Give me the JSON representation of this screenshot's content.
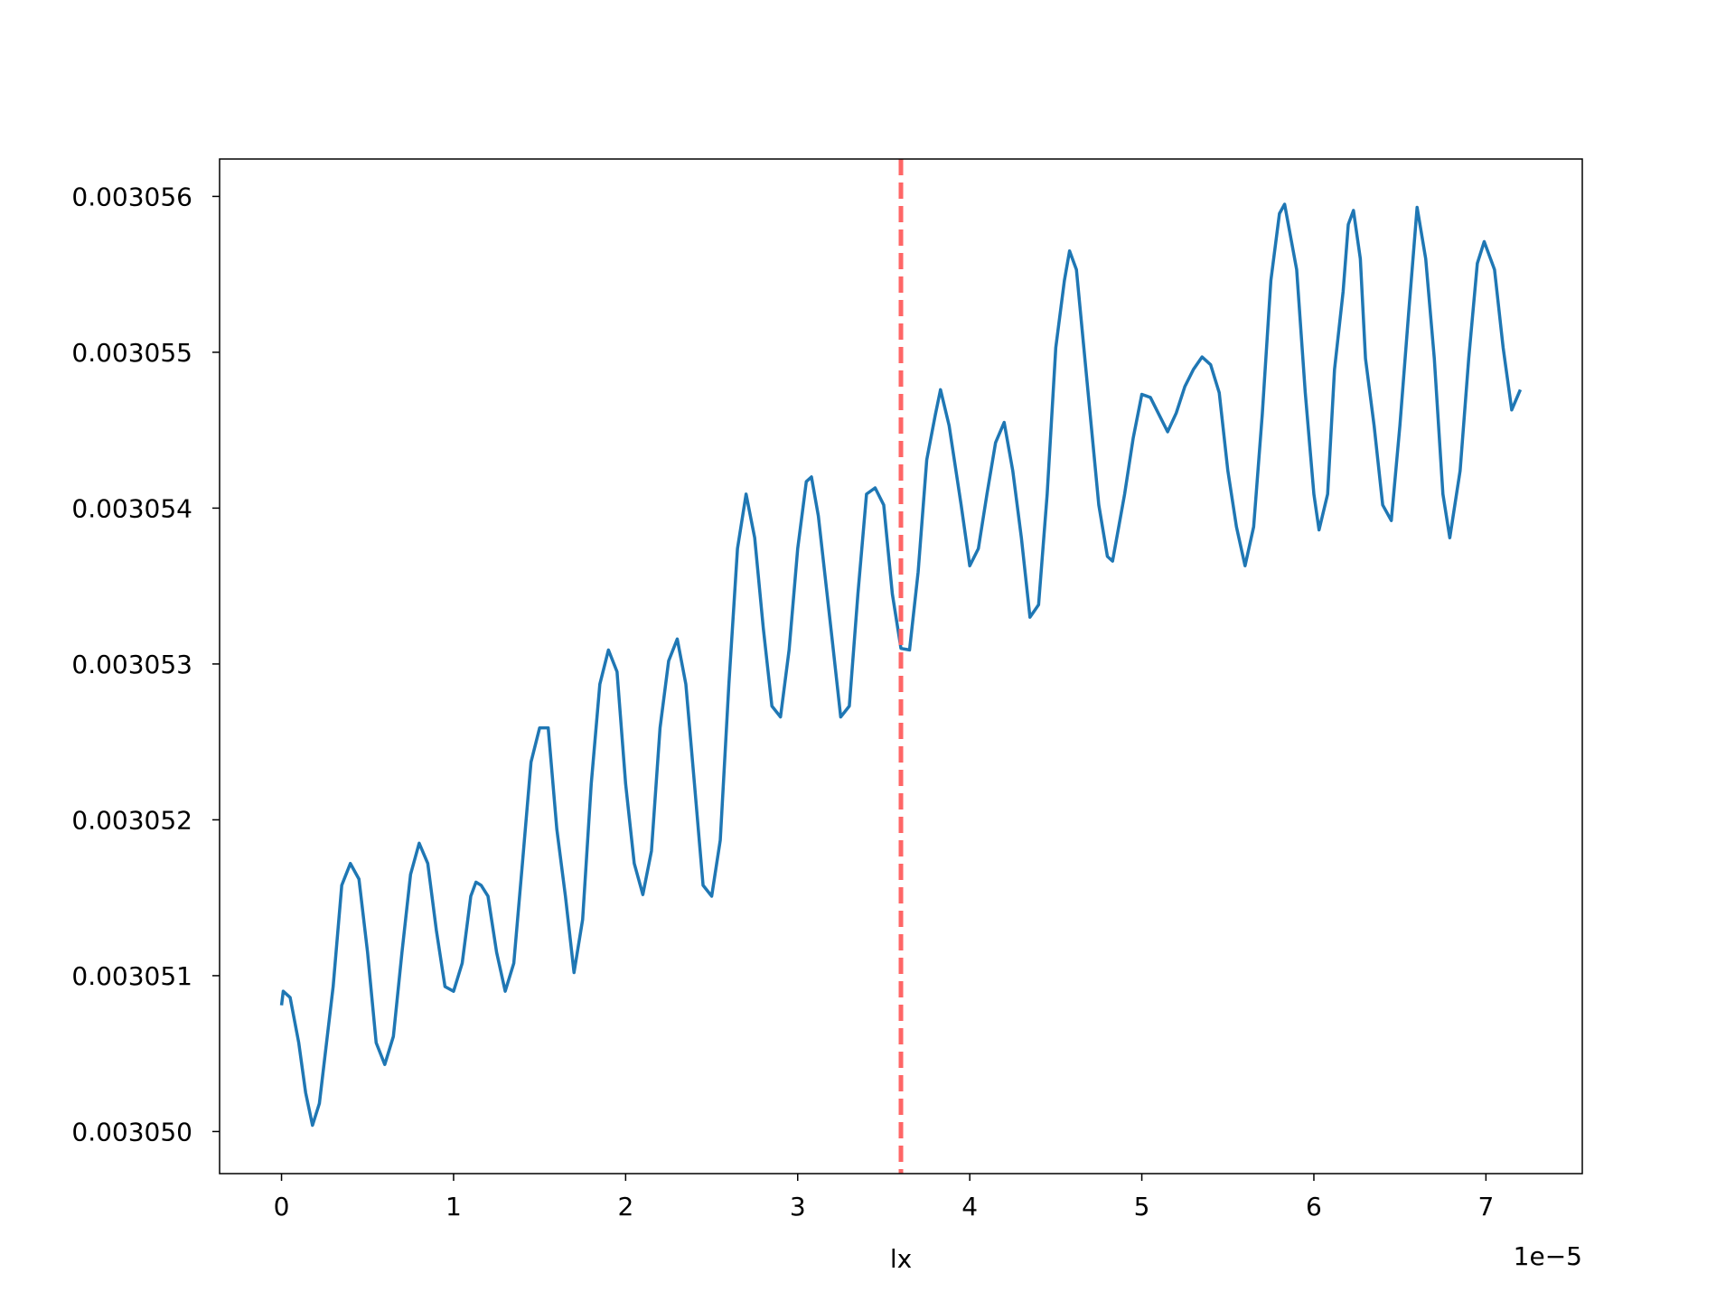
{
  "chart_data": {
    "type": "line",
    "x_label": "lx",
    "x_offset_label": "1e−5",
    "x": [
      0,
      0.01,
      0.05,
      0.1,
      0.14,
      0.18,
      0.22,
      0.3,
      0.35,
      0.4,
      0.45,
      0.5,
      0.55,
      0.6,
      0.65,
      0.7,
      0.75,
      0.8,
      0.85,
      0.9,
      0.95,
      1.0,
      1.05,
      1.1,
      1.13,
      1.16,
      1.2,
      1.25,
      1.3,
      1.35,
      1.4,
      1.45,
      1.5,
      1.55,
      1.6,
      1.65,
      1.7,
      1.75,
      1.8,
      1.85,
      1.9,
      1.95,
      2.0,
      2.05,
      2.1,
      2.15,
      2.2,
      2.25,
      2.3,
      2.35,
      2.4,
      2.45,
      2.5,
      2.55,
      2.6,
      2.65,
      2.7,
      2.75,
      2.8,
      2.85,
      2.9,
      2.95,
      3.0,
      3.05,
      3.08,
      3.12,
      3.2,
      3.25,
      3.3,
      3.35,
      3.4,
      3.45,
      3.5,
      3.55,
      3.6,
      3.65,
      3.7,
      3.75,
      3.8,
      3.83,
      3.88,
      3.95,
      4.0,
      4.05,
      4.1,
      4.15,
      4.2,
      4.25,
      4.3,
      4.35,
      4.4,
      4.45,
      4.5,
      4.55,
      4.58,
      4.62,
      4.7,
      4.75,
      4.8,
      4.83,
      4.9,
      4.95,
      5.0,
      5.05,
      5.1,
      5.15,
      5.2,
      5.25,
      5.3,
      5.35,
      5.4,
      5.45,
      5.5,
      5.55,
      5.6,
      5.65,
      5.7,
      5.75,
      5.8,
      5.83,
      5.9,
      5.95,
      6.0,
      6.03,
      6.08,
      6.12,
      6.17,
      6.2,
      6.23,
      6.27,
      6.3,
      6.35,
      6.4,
      6.45,
      6.5,
      6.55,
      6.6,
      6.65,
      6.7,
      6.75,
      6.79,
      6.85,
      6.9,
      6.95,
      6.99,
      7.05,
      7.1,
      7.15,
      7.2
    ],
    "values": [
      0.00305081,
      0.0030509,
      0.00305086,
      0.00305057,
      0.00305025,
      0.00305004,
      0.00305018,
      0.00305093,
      0.00305158,
      0.00305172,
      0.00305162,
      0.00305115,
      0.00305057,
      0.00305043,
      0.00305061,
      0.00305115,
      0.00305165,
      0.00305185,
      0.00305172,
      0.00305129,
      0.00305093,
      0.0030509,
      0.00305108,
      0.00305151,
      0.0030516,
      0.00305158,
      0.00305151,
      0.00305115,
      0.0030509,
      0.00305108,
      0.00305172,
      0.00305237,
      0.00305259,
      0.00305259,
      0.00305194,
      0.00305151,
      0.00305102,
      0.00305136,
      0.00305223,
      0.00305287,
      0.00305309,
      0.00305295,
      0.00305223,
      0.00305172,
      0.00305152,
      0.0030518,
      0.00305259,
      0.00305302,
      0.00305316,
      0.00305287,
      0.00305223,
      0.00305158,
      0.00305151,
      0.00305187,
      0.00305287,
      0.00305374,
      0.00305409,
      0.00305381,
      0.00305323,
      0.00305273,
      0.00305266,
      0.00305309,
      0.00305374,
      0.00305417,
      0.0030542,
      0.00305395,
      0.00305316,
      0.00305266,
      0.00305273,
      0.00305345,
      0.00305409,
      0.00305413,
      0.00305402,
      0.00305345,
      0.0030531,
      0.00305309,
      0.00305359,
      0.00305431,
      0.0030546,
      0.00305476,
      0.00305453,
      0.00305402,
      0.00305363,
      0.00305374,
      0.00305409,
      0.00305442,
      0.00305455,
      0.00305424,
      0.00305381,
      0.0030533,
      0.00305338,
      0.00305409,
      0.00305503,
      0.00305546,
      0.00305565,
      0.00305553,
      0.0030546,
      0.00305402,
      0.00305369,
      0.00305366,
      0.00305409,
      0.00305445,
      0.00305473,
      0.00305471,
      0.0030546,
      0.00305449,
      0.00305461,
      0.00305478,
      0.00305489,
      0.00305497,
      0.00305492,
      0.00305474,
      0.00305424,
      0.00305388,
      0.00305363,
      0.00305388,
      0.0030546,
      0.00305546,
      0.00305589,
      0.00305595,
      0.00305553,
      0.00305474,
      0.00305409,
      0.00305386,
      0.00305409,
      0.00305489,
      0.00305539,
      0.00305582,
      0.00305591,
      0.0030556,
      0.00305496,
      0.00305453,
      0.00305402,
      0.00305392,
      0.00305453,
      0.00305524,
      0.00305593,
      0.0030556,
      0.00305496,
      0.00305409,
      0.00305381,
      0.00305424,
      0.00305496,
      0.00305557,
      0.00305571,
      0.00305553,
      0.00305503,
      0.00305463,
      0.00305476
    ],
    "color": "#1f77b4",
    "vline": {
      "x": 3.6,
      "color": "#ff6666",
      "style": "dashed"
    },
    "xlim": [
      -0.36,
      7.56
    ],
    "ylim": [
      0.00304973,
      0.00305624
    ],
    "xticks": [
      0,
      1,
      2,
      3,
      4,
      5,
      6,
      7
    ],
    "yticks": [
      {
        "value": 0.00305,
        "label": "0.003050"
      },
      0.003051,
      0.003052,
      0.003053,
      0.003054,
      0.003055,
      0.003056
    ],
    "grid": false
  }
}
